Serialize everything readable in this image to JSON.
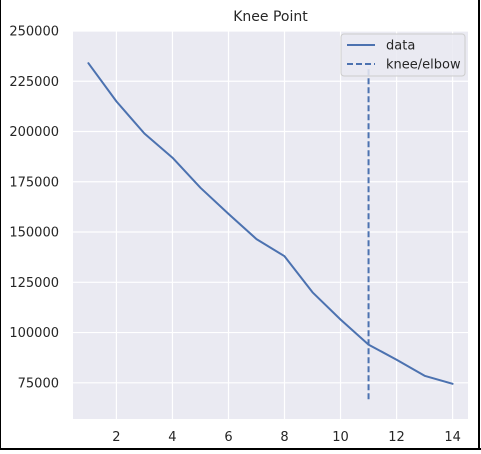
{
  "chart_data": {
    "type": "line",
    "title": "Knee Point",
    "xlabel": "",
    "ylabel": "",
    "xlim": [
      0.45,
      14.55
    ],
    "ylim": [
      57000,
      250000
    ],
    "x_ticks": [
      2,
      4,
      6,
      8,
      10,
      12,
      14
    ],
    "y_ticks": [
      75000,
      100000,
      125000,
      150000,
      175000,
      200000,
      225000,
      250000
    ],
    "grid": true,
    "legend_position": "top-right",
    "background_color": "#eaeaf2",
    "grid_color": "#ffffff",
    "series": [
      {
        "name": "data",
        "color": "#4c72b0",
        "style": "solid",
        "x": [
          1,
          2,
          3,
          4,
          5,
          6,
          7,
          8,
          9,
          10,
          11,
          12,
          13,
          14
        ],
        "values": [
          234000,
          215000,
          199000,
          187000,
          172000,
          159000,
          146500,
          138000,
          120000,
          106500,
          94000,
          86500,
          78500,
          74500
        ]
      }
    ],
    "knee": {
      "name": "knee/elbow",
      "x": 11,
      "color": "#4c72b0",
      "style": "dashed",
      "y_range": [
        66000,
        231000
      ]
    }
  }
}
